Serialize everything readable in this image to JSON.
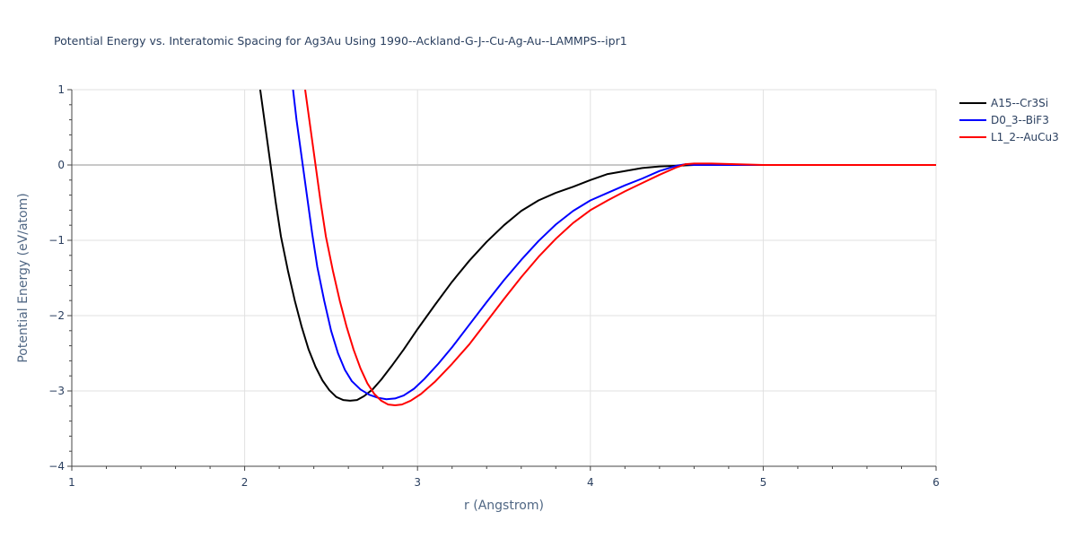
{
  "chart_data": {
    "type": "line",
    "title": "Potential Energy vs. Interatomic Spacing for Ag3Au Using 1990--Ackland-G-J--Cu-Ag-Au--LAMMPS--ipr1",
    "xlabel": "r (Angstrom)",
    "ylabel": "Potential Energy (eV/atom)",
    "xlim": [
      1,
      6
    ],
    "ylim": [
      -4,
      1
    ],
    "x_ticks": [
      "1",
      "2",
      "3",
      "4",
      "5",
      "6"
    ],
    "y_ticks": [
      "1",
      "0",
      "−1",
      "−2",
      "−3",
      "−4"
    ],
    "grid": true,
    "legend_position": "top-right",
    "series": [
      {
        "name": "A15--Cr3Si",
        "color": "#000000",
        "points": [
          [
            2.09,
            1.0
          ],
          [
            2.12,
            0.5
          ],
          [
            2.15,
            0.0
          ],
          [
            2.18,
            -0.5
          ],
          [
            2.21,
            -0.95
          ],
          [
            2.25,
            -1.4
          ],
          [
            2.29,
            -1.8
          ],
          [
            2.33,
            -2.15
          ],
          [
            2.37,
            -2.45
          ],
          [
            2.41,
            -2.68
          ],
          [
            2.45,
            -2.86
          ],
          [
            2.49,
            -2.99
          ],
          [
            2.53,
            -3.08
          ],
          [
            2.57,
            -3.12
          ],
          [
            2.61,
            -3.13
          ],
          [
            2.65,
            -3.12
          ],
          [
            2.69,
            -3.07
          ],
          [
            2.74,
            -2.98
          ],
          [
            2.79,
            -2.85
          ],
          [
            2.85,
            -2.67
          ],
          [
            2.92,
            -2.45
          ],
          [
            3.0,
            -2.18
          ],
          [
            3.1,
            -1.86
          ],
          [
            3.2,
            -1.55
          ],
          [
            3.3,
            -1.27
          ],
          [
            3.4,
            -1.02
          ],
          [
            3.5,
            -0.8
          ],
          [
            3.6,
            -0.61
          ],
          [
            3.7,
            -0.47
          ],
          [
            3.8,
            -0.37
          ],
          [
            3.9,
            -0.29
          ],
          [
            4.0,
            -0.2
          ],
          [
            4.1,
            -0.12
          ],
          [
            4.2,
            -0.08
          ],
          [
            4.3,
            -0.04
          ],
          [
            4.4,
            -0.02
          ],
          [
            4.5,
            -0.01
          ],
          [
            4.6,
            0.0
          ],
          [
            5.0,
            0.0
          ],
          [
            6.0,
            0.0
          ]
        ]
      },
      {
        "name": "D0_3--BiF3",
        "color": "#0000ff",
        "points": [
          [
            2.28,
            1.0
          ],
          [
            2.3,
            0.6
          ],
          [
            2.33,
            0.1
          ],
          [
            2.36,
            -0.4
          ],
          [
            2.39,
            -0.9
          ],
          [
            2.42,
            -1.35
          ],
          [
            2.46,
            -1.8
          ],
          [
            2.5,
            -2.2
          ],
          [
            2.54,
            -2.5
          ],
          [
            2.58,
            -2.72
          ],
          [
            2.62,
            -2.87
          ],
          [
            2.67,
            -2.98
          ],
          [
            2.72,
            -3.05
          ],
          [
            2.77,
            -3.09
          ],
          [
            2.82,
            -3.11
          ],
          [
            2.87,
            -3.1
          ],
          [
            2.92,
            -3.06
          ],
          [
            2.98,
            -2.97
          ],
          [
            3.04,
            -2.84
          ],
          [
            3.12,
            -2.64
          ],
          [
            3.2,
            -2.42
          ],
          [
            3.3,
            -2.12
          ],
          [
            3.4,
            -1.82
          ],
          [
            3.5,
            -1.53
          ],
          [
            3.6,
            -1.26
          ],
          [
            3.7,
            -1.01
          ],
          [
            3.8,
            -0.79
          ],
          [
            3.9,
            -0.61
          ],
          [
            4.0,
            -0.47
          ],
          [
            4.1,
            -0.37
          ],
          [
            4.2,
            -0.27
          ],
          [
            4.3,
            -0.18
          ],
          [
            4.4,
            -0.08
          ],
          [
            4.5,
            -0.01
          ],
          [
            4.55,
            0.01
          ],
          [
            4.6,
            0.0
          ],
          [
            5.0,
            0.0
          ],
          [
            6.0,
            0.0
          ]
        ]
      },
      {
        "name": "L1_2--AuCu3",
        "color": "#ff0000",
        "points": [
          [
            2.35,
            1.0
          ],
          [
            2.38,
            0.5
          ],
          [
            2.41,
            0.0
          ],
          [
            2.44,
            -0.5
          ],
          [
            2.47,
            -0.95
          ],
          [
            2.51,
            -1.4
          ],
          [
            2.55,
            -1.8
          ],
          [
            2.59,
            -2.15
          ],
          [
            2.63,
            -2.45
          ],
          [
            2.67,
            -2.7
          ],
          [
            2.71,
            -2.9
          ],
          [
            2.75,
            -3.04
          ],
          [
            2.79,
            -3.13
          ],
          [
            2.83,
            -3.18
          ],
          [
            2.87,
            -3.19
          ],
          [
            2.91,
            -3.18
          ],
          [
            2.96,
            -3.13
          ],
          [
            3.02,
            -3.04
          ],
          [
            3.1,
            -2.88
          ],
          [
            3.2,
            -2.64
          ],
          [
            3.3,
            -2.38
          ],
          [
            3.4,
            -2.08
          ],
          [
            3.5,
            -1.78
          ],
          [
            3.6,
            -1.49
          ],
          [
            3.7,
            -1.22
          ],
          [
            3.8,
            -0.98
          ],
          [
            3.9,
            -0.77
          ],
          [
            4.0,
            -0.6
          ],
          [
            4.1,
            -0.47
          ],
          [
            4.2,
            -0.35
          ],
          [
            4.3,
            -0.24
          ],
          [
            4.4,
            -0.13
          ],
          [
            4.5,
            -0.03
          ],
          [
            4.55,
            0.01
          ],
          [
            4.6,
            0.02
          ],
          [
            4.7,
            0.02
          ],
          [
            5.0,
            0.0
          ],
          [
            6.0,
            0.0
          ]
        ]
      }
    ]
  }
}
